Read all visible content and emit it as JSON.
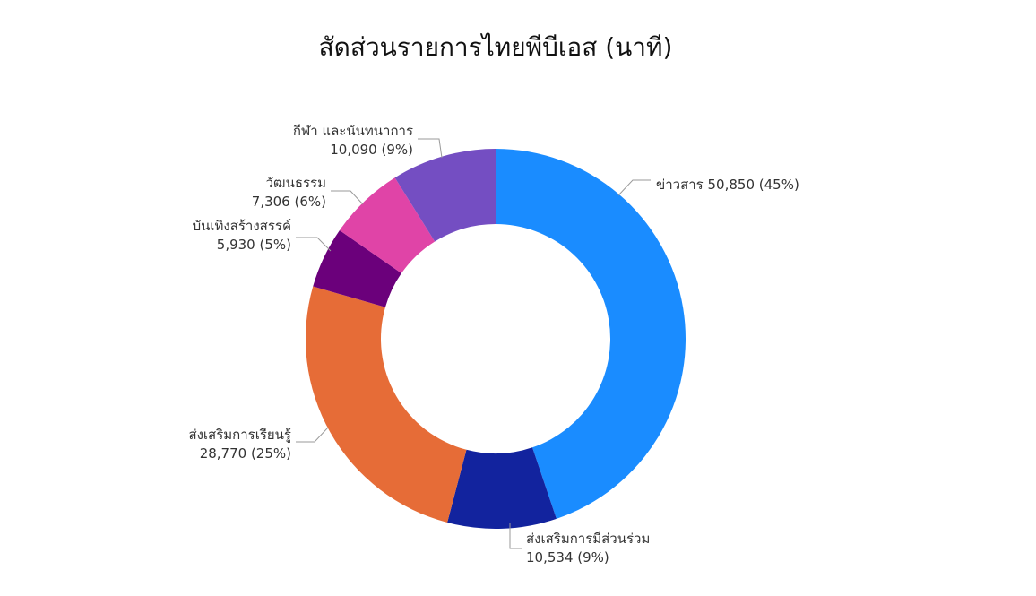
{
  "chart_data": {
    "type": "pie",
    "donut": true,
    "title": "สัดส่วนรายการไทยพีบีเอส (นาที)",
    "categories": [
      "ข่าวสาร",
      "ส่งเสริมการมีส่วนร่วม",
      "ส่งเสริมการเรียนรู้",
      "บันเทิงสร้างสรรค์",
      "วัฒนธรรม",
      "กีฬา และนันทนาการ"
    ],
    "values": [
      50850,
      10534,
      28770,
      5930,
      7306,
      10090
    ],
    "value_labels": [
      "50,850",
      "10,534",
      "28,770",
      "5,930",
      "7,306",
      "10,090"
    ],
    "percent_labels": [
      "(45%)",
      "(9%)",
      "(25%)",
      "(5%)",
      "(6%)",
      "(9%)"
    ],
    "colors": [
      "#1a8cff",
      "#12239e",
      "#e66c37",
      "#6b007b",
      "#e044a7",
      "#744ec2"
    ],
    "start_angle_deg": 0,
    "direction": "clockwise",
    "legend": "none"
  }
}
